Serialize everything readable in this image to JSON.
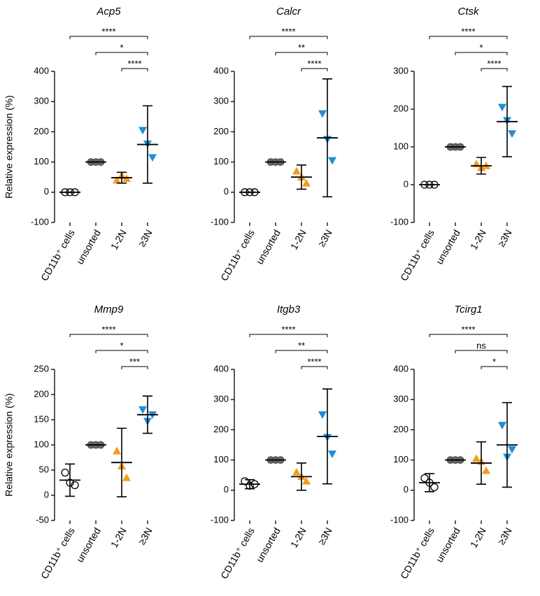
{
  "chart_data": [
    {
      "type": "dot",
      "title": "Acp5",
      "ylabel": "Relative expression (%)",
      "categories": [
        "CD11b⁺ cells",
        "unsorted",
        "1-2N",
        "≥3N"
      ],
      "values": [
        [
          0,
          0,
          0
        ],
        [
          100,
          100,
          100
        ],
        [
          40,
          55,
          45
        ],
        [
          205,
          160,
          115
        ]
      ],
      "means": [
        0,
        100,
        48,
        158
      ],
      "errors": [
        0,
        0,
        18,
        128
      ],
      "colors": [
        "#000000",
        "#666666",
        "#f39c1e",
        "#1e90d6"
      ],
      "markers": [
        "open-circle",
        "circle",
        "triangle-up",
        "triangle-down"
      ],
      "ylim": [
        -100,
        400
      ],
      "yticks": [
        -100,
        0,
        100,
        200,
        300,
        400
      ],
      "comparisons": [
        {
          "groups": [
            0,
            3
          ],
          "label": "****"
        },
        {
          "groups": [
            1,
            3
          ],
          "label": "*"
        },
        {
          "groups": [
            2,
            3
          ],
          "label": "****"
        }
      ]
    },
    {
      "type": "dot",
      "title": "Calcr",
      "categories": [
        "CD11b⁺ cells",
        "unsorted",
        "1-2N",
        "≥3N"
      ],
      "values": [
        [
          0,
          0,
          0
        ],
        [
          100,
          100,
          100
        ],
        [
          70,
          50,
          30
        ],
        [
          260,
          175,
          105
        ]
      ],
      "means": [
        0,
        100,
        50,
        180
      ],
      "errors": [
        0,
        0,
        40,
        195
      ],
      "colors": [
        "#000000",
        "#666666",
        "#f39c1e",
        "#1e90d6"
      ],
      "markers": [
        "open-circle",
        "circle",
        "triangle-up",
        "triangle-down"
      ],
      "ylim": [
        -100,
        400
      ],
      "yticks": [
        -100,
        0,
        100,
        200,
        300,
        400
      ],
      "comparisons": [
        {
          "groups": [
            0,
            3
          ],
          "label": "****"
        },
        {
          "groups": [
            1,
            3
          ],
          "label": "**"
        },
        {
          "groups": [
            2,
            3
          ],
          "label": "****"
        }
      ]
    },
    {
      "type": "dot",
      "title": "Ctsk",
      "categories": [
        "CD11b⁺ cells",
        "unsorted",
        "1-2N",
        "≥3N"
      ],
      "values": [
        [
          0,
          0,
          0
        ],
        [
          100,
          100,
          100
        ],
        [
          55,
          45,
          50
        ],
        [
          205,
          170,
          135
        ]
      ],
      "means": [
        0,
        100,
        50,
        167
      ],
      "errors": [
        0,
        0,
        22,
        93
      ],
      "colors": [
        "#000000",
        "#666666",
        "#f39c1e",
        "#1e90d6"
      ],
      "markers": [
        "open-circle",
        "circle",
        "triangle-up",
        "triangle-down"
      ],
      "ylim": [
        -100,
        300
      ],
      "yticks": [
        -100,
        0,
        100,
        200,
        300
      ],
      "comparisons": [
        {
          "groups": [
            0,
            3
          ],
          "label": "****"
        },
        {
          "groups": [
            1,
            3
          ],
          "label": "*"
        },
        {
          "groups": [
            2,
            3
          ],
          "label": "****"
        }
      ]
    },
    {
      "type": "dot",
      "title": "Mmp9",
      "ylabel": "Relative expression (%)",
      "categories": [
        "CD11b⁺ cells",
        "unsorted",
        "1-2N",
        "≥3N"
      ],
      "values": [
        [
          45,
          25,
          20
        ],
        [
          100,
          100,
          100
        ],
        [
          88,
          58,
          35
        ],
        [
          170,
          147,
          160
        ]
      ],
      "means": [
        30,
        100,
        65,
        160
      ],
      "errors": [
        32,
        0,
        68,
        37
      ],
      "colors": [
        "#000000",
        "#666666",
        "#f39c1e",
        "#1e90d6"
      ],
      "markers": [
        "open-circle",
        "circle",
        "triangle-up",
        "triangle-down"
      ],
      "ylim": [
        -50,
        250
      ],
      "yticks": [
        -50,
        0,
        50,
        100,
        150,
        200,
        250
      ],
      "comparisons": [
        {
          "groups": [
            0,
            3
          ],
          "label": "****"
        },
        {
          "groups": [
            1,
            3
          ],
          "label": "*"
        },
        {
          "groups": [
            2,
            3
          ],
          "label": "***"
        }
      ]
    },
    {
      "type": "dot",
      "title": "Itgb3",
      "categories": [
        "CD11b⁺ cells",
        "unsorted",
        "1-2N",
        "≥3N"
      ],
      "values": [
        [
          30,
          15,
          20
        ],
        [
          100,
          100,
          100
        ],
        [
          60,
          45,
          30
        ],
        [
          250,
          175,
          120
        ]
      ],
      "means": [
        20,
        100,
        45,
        178
      ],
      "errors": [
        15,
        0,
        45,
        157
      ],
      "colors": [
        "#000000",
        "#666666",
        "#f39c1e",
        "#1e90d6"
      ],
      "markers": [
        "open-circle",
        "circle",
        "triangle-up",
        "triangle-down"
      ],
      "ylim": [
        -100,
        400
      ],
      "yticks": [
        -100,
        0,
        100,
        200,
        300,
        400
      ],
      "comparisons": [
        {
          "groups": [
            0,
            3
          ],
          "label": "****"
        },
        {
          "groups": [
            1,
            3
          ],
          "label": "**"
        },
        {
          "groups": [
            2,
            3
          ],
          "label": "****"
        }
      ]
    },
    {
      "type": "dot",
      "title": "Tcirg1",
      "categories": [
        "CD11b⁺ cells",
        "unsorted",
        "1-2N",
        "≥3N"
      ],
      "values": [
        [
          40,
          25,
          10
        ],
        [
          100,
          100,
          100
        ],
        [
          105,
          95,
          65
        ],
        [
          215,
          110,
          135
        ]
      ],
      "means": [
        25,
        100,
        90,
        150
      ],
      "errors": [
        30,
        0,
        70,
        140
      ],
      "colors": [
        "#000000",
        "#666666",
        "#f39c1e",
        "#1e90d6"
      ],
      "markers": [
        "open-circle",
        "circle",
        "triangle-up",
        "triangle-down"
      ],
      "ylim": [
        -100,
        400
      ],
      "yticks": [
        -100,
        0,
        100,
        200,
        300,
        400
      ],
      "comparisons": [
        {
          "groups": [
            0,
            3
          ],
          "label": "****"
        },
        {
          "groups": [
            1,
            3
          ],
          "label": "ns"
        },
        {
          "groups": [
            2,
            3
          ],
          "label": "*"
        }
      ]
    }
  ]
}
